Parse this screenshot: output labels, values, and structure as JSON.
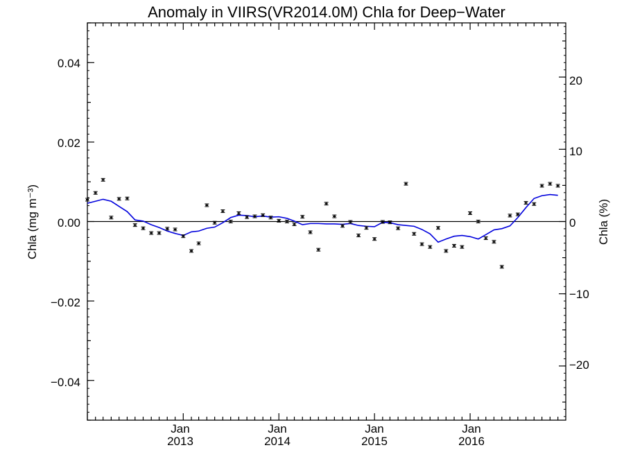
{
  "chart_data": {
    "type": "scatter",
    "title": "Anomaly in VIIRS(VR2014.0M) Chla for Deep−Water",
    "ylabel_left": "Chla (mg m⁻³)",
    "ylabel_right": "Chla (%)",
    "ylim_left": [
      -0.05,
      0.05
    ],
    "ylim_right": [
      -27.5,
      27.5
    ],
    "xlim": [
      "2012-01-01",
      "2016-12-31"
    ],
    "yticks_left": [
      "0.04",
      "0.02",
      "0.00",
      "−0.02",
      "−0.04"
    ],
    "yticks_right": [
      "20",
      "10",
      "0",
      "−10",
      "−20"
    ],
    "xticks": [
      {
        "month": "Jan",
        "year": "2013",
        "date": "2013-01-01"
      },
      {
        "month": "Jan",
        "year": "2014",
        "date": "2014-01-01"
      },
      {
        "month": "Jan",
        "year": "2015",
        "date": "2015-01-01"
      },
      {
        "month": "Jan",
        "year": "2016",
        "date": "2016-01-01"
      }
    ],
    "zero_line": true,
    "grid": false,
    "series": [
      {
        "kind": "points_with_errorbars",
        "color": "#000000",
        "x": [
          "2012-01-01",
          "2012-02-01",
          "2012-03-01",
          "2012-04-01",
          "2012-05-01",
          "2012-06-01",
          "2012-07-01",
          "2012-08-01",
          "2012-09-01",
          "2012-10-01",
          "2012-11-01",
          "2012-12-01",
          "2013-01-01",
          "2013-02-01",
          "2013-03-01",
          "2013-04-01",
          "2013-05-01",
          "2013-06-01",
          "2013-07-01",
          "2013-08-01",
          "2013-09-01",
          "2013-10-01",
          "2013-11-01",
          "2013-12-01",
          "2014-01-01",
          "2014-02-01",
          "2014-03-01",
          "2014-04-01",
          "2014-05-01",
          "2014-06-01",
          "2014-07-01",
          "2014-08-01",
          "2014-09-01",
          "2014-10-01",
          "2014-11-01",
          "2014-12-01",
          "2015-01-01",
          "2015-02-01",
          "2015-03-01",
          "2015-04-01",
          "2015-05-01",
          "2015-06-01",
          "2015-07-01",
          "2015-08-01",
          "2015-09-01",
          "2015-10-01",
          "2015-11-01",
          "2015-12-01",
          "2016-01-01",
          "2016-02-01",
          "2016-03-01",
          "2016-04-01",
          "2016-05-01",
          "2016-06-01",
          "2016-07-01",
          "2016-08-01",
          "2016-09-01",
          "2016-10-01",
          "2016-11-01",
          "2016-12-01"
        ],
        "values": [
          0.0055,
          0.0072,
          0.0105,
          0.001,
          0.0057,
          0.0058,
          -0.0009,
          -0.0017,
          -0.0029,
          -0.0029,
          -0.0018,
          -0.002,
          -0.0037,
          -0.0074,
          -0.0055,
          0.0041,
          -0.0003,
          0.0026,
          0.0,
          0.0021,
          0.0011,
          0.0013,
          0.0016,
          0.001,
          0.0002,
          0.0,
          -0.0007,
          0.0012,
          -0.0027,
          -0.0071,
          0.0045,
          0.0013,
          -0.0011,
          -0.0001,
          -0.0035,
          -0.0016,
          -0.0044,
          -0.0001,
          -0.0002,
          -0.0017,
          0.0095,
          -0.0031,
          -0.0057,
          -0.0064,
          -0.0016,
          -0.0074,
          -0.0061,
          -0.0064,
          0.0021,
          0.0,
          -0.0042,
          -0.0051,
          -0.0114,
          0.0015,
          0.0018,
          0.0047,
          0.0044,
          0.009,
          0.0095,
          0.009
        ]
      },
      {
        "kind": "line",
        "color": "#0000dd",
        "x": [
          "2012-01-01",
          "2012-02-01",
          "2012-03-01",
          "2012-04-01",
          "2012-05-01",
          "2012-06-01",
          "2012-07-01",
          "2012-08-01",
          "2012-09-01",
          "2012-10-01",
          "2012-11-01",
          "2012-12-01",
          "2013-01-01",
          "2013-02-01",
          "2013-03-01",
          "2013-04-01",
          "2013-05-01",
          "2013-06-01",
          "2013-07-01",
          "2013-08-01",
          "2013-09-01",
          "2013-10-01",
          "2013-11-01",
          "2013-12-01",
          "2014-01-01",
          "2014-02-01",
          "2014-03-01",
          "2014-04-01",
          "2014-05-01",
          "2014-06-01",
          "2014-07-01",
          "2014-08-01",
          "2014-09-01",
          "2014-10-01",
          "2014-11-01",
          "2014-12-01",
          "2015-01-01",
          "2015-02-01",
          "2015-03-01",
          "2015-04-01",
          "2015-05-01",
          "2015-06-01",
          "2015-07-01",
          "2015-08-01",
          "2015-09-01",
          "2015-10-01",
          "2015-11-01",
          "2015-12-01",
          "2016-01-01",
          "2016-02-01",
          "2016-03-01",
          "2016-04-01",
          "2016-05-01",
          "2016-06-01",
          "2016-07-01",
          "2016-08-01",
          "2016-09-01",
          "2016-10-01",
          "2016-11-01",
          "2016-12-01"
        ],
        "values": [
          0.0046,
          0.0051,
          0.0056,
          0.0051,
          0.0038,
          0.0025,
          0.0004,
          0.0001,
          -0.0008,
          -0.0015,
          -0.0024,
          -0.003,
          -0.0035,
          -0.0026,
          -0.0024,
          -0.0017,
          -0.0014,
          -0.0003,
          0.001,
          0.0016,
          0.0015,
          0.0012,
          0.0014,
          0.0011,
          0.0012,
          0.0008,
          0.0001,
          -0.0008,
          -0.0005,
          -0.0005,
          -0.0006,
          -0.0006,
          -0.0007,
          -0.0005,
          -0.001,
          -0.0012,
          -0.0013,
          -0.0002,
          -0.0003,
          -0.0008,
          -0.001,
          -0.0012,
          -0.002,
          -0.0031,
          -0.0052,
          -0.0044,
          -0.0037,
          -0.0035,
          -0.0038,
          -0.0044,
          -0.0033,
          -0.0021,
          -0.0018,
          -0.0011,
          0.001,
          0.0035,
          0.0058,
          0.0065,
          0.0068,
          0.0066
        ]
      }
    ]
  }
}
